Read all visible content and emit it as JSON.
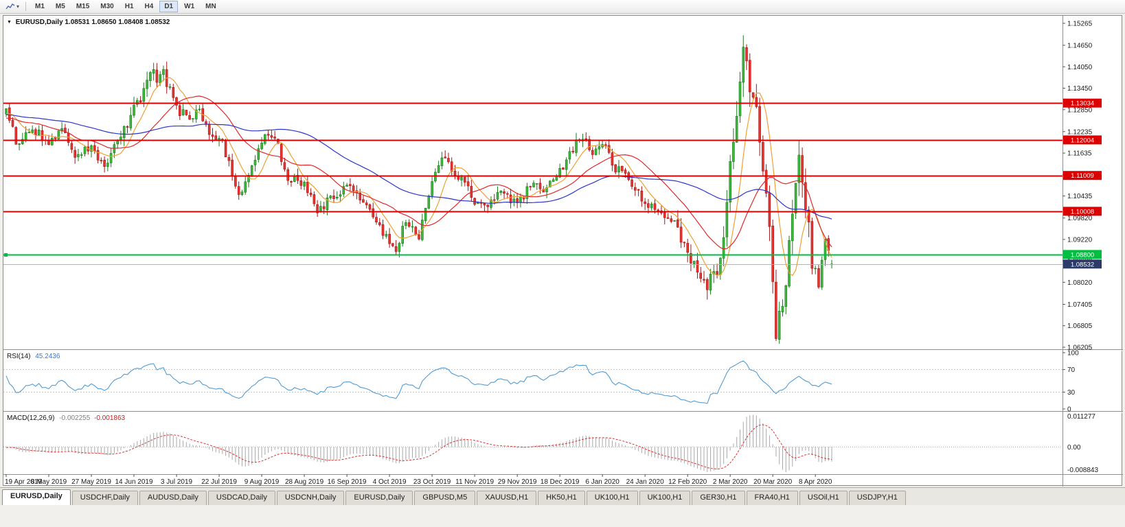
{
  "toolbar": {
    "chart_icon": "mini-line-chart",
    "dropdown_arrow": "▾",
    "timeframes": [
      {
        "label": "M1",
        "active": false
      },
      {
        "label": "M5",
        "active": false
      },
      {
        "label": "M15",
        "active": false
      },
      {
        "label": "M30",
        "active": false
      },
      {
        "label": "H1",
        "active": false
      },
      {
        "label": "H4",
        "active": false
      },
      {
        "label": "D1",
        "active": true
      },
      {
        "label": "W1",
        "active": false
      },
      {
        "label": "MN",
        "active": false
      }
    ]
  },
  "chart": {
    "collapse_arrow": "▼",
    "title_symbol": "EURUSD,Daily",
    "title_ohlc": "1.08531 1.08650 1.08408 1.08532",
    "price_axis_labels": [
      "1.15265",
      "1.14650",
      "1.14050",
      "1.13450",
      "1.12850",
      "1.12235",
      "1.11635",
      "1.11030",
      "1.10435",
      "1.09820",
      "1.09220",
      "1.08620",
      "1.08020",
      "1.07405",
      "1.06805",
      "1.06205"
    ]
  },
  "rsi_panel": {
    "name": "RSI(14)",
    "value": "45.2436",
    "axis_labels": [
      "100",
      "70",
      "30",
      "0"
    ],
    "levels": [
      70,
      30
    ],
    "line_color": "#4f9bd5"
  },
  "macd_panel": {
    "name": "MACD(12,26,9)",
    "value_main": "-0.002255",
    "value_signal": "-0.001863",
    "axis_top": "0.011277",
    "axis_zero": "0.00",
    "axis_bottom": "-0.008843"
  },
  "tabs": [
    {
      "label": "EURUSD,Daily",
      "active": true
    },
    {
      "label": "USDCHF,Daily",
      "active": false
    },
    {
      "label": "AUDUSD,Daily",
      "active": false
    },
    {
      "label": "USDCAD,Daily",
      "active": false
    },
    {
      "label": "USDCNH,Daily",
      "active": false
    },
    {
      "label": "EURUSD,Daily",
      "active": false
    },
    {
      "label": "GBPUSD,M5",
      "active": false
    },
    {
      "label": "XAUUSD,H1",
      "active": false
    },
    {
      "label": "HK50,H1",
      "active": false
    },
    {
      "label": "UK100,H1",
      "active": false
    },
    {
      "label": "UK100,H1",
      "active": false
    },
    {
      "label": "GER30,H1",
      "active": false
    },
    {
      "label": "FRA40,H1",
      "active": false
    },
    {
      "label": "USOil,H1",
      "active": false
    },
    {
      "label": "USDJPY,H1",
      "active": false
    }
  ],
  "chart_data": {
    "type": "candlestick",
    "symbol": "EURUSD",
    "timeframe": "Daily",
    "n_candles": 253,
    "warmup_bars": 60,
    "date_tick_interval": 13,
    "dates": [
      "19 Apr 2019",
      "8 May 2019",
      "27 May 2019",
      "14 Jun 2019",
      "3 Jul 2019",
      "22 Jul 2019",
      "9 Aug 2019",
      "28 Aug 2019",
      "16 Sep 2019",
      "4 Oct 2019",
      "23 Oct 2019",
      "11 Nov 2019",
      "29 Nov 2019",
      "18 Dec 2019",
      "6 Jan 2020",
      "24 Jan 2020",
      "12 Feb 2020",
      "2 Mar 2020",
      "20 Mar 2020",
      "8 Apr 2020"
    ],
    "price_range": [
      1.06147,
      1.15476
    ],
    "macd_range": [
      -0.008843,
      0.011277
    ],
    "last_ohlc": {
      "open": 1.08531,
      "high": 1.0865,
      "low": 1.08408,
      "close": 1.08532
    },
    "waypoints": [
      [
        -60,
        1.131
      ],
      [
        -45,
        1.126
      ],
      [
        -30,
        1.1295
      ],
      [
        -15,
        1.1245
      ],
      [
        -5,
        1.127
      ],
      [
        0,
        1.1285
      ],
      [
        3,
        1.1195
      ],
      [
        8,
        1.123
      ],
      [
        13,
        1.1195
      ],
      [
        17,
        1.123
      ],
      [
        21,
        1.1155
      ],
      [
        26,
        1.1185
      ],
      [
        30,
        1.1125
      ],
      [
        34,
        1.12
      ],
      [
        38,
        1.127
      ],
      [
        42,
        1.133
      ],
      [
        44,
        1.1405
      ],
      [
        46,
        1.136
      ],
      [
        48,
        1.139
      ],
      [
        52,
        1.1285
      ],
      [
        56,
        1.1265
      ],
      [
        59,
        1.1285
      ],
      [
        63,
        1.12
      ],
      [
        65,
        1.1215
      ],
      [
        68,
        1.114
      ],
      [
        71,
        1.104
      ],
      [
        74,
        1.1105
      ],
      [
        78,
        1.12
      ],
      [
        82,
        1.121
      ],
      [
        86,
        1.1095
      ],
      [
        91,
        1.108
      ],
      [
        95,
        1.099
      ],
      [
        99,
        1.104
      ],
      [
        104,
        1.107
      ],
      [
        108,
        1.104
      ],
      [
        112,
        1.099
      ],
      [
        116,
        1.093
      ],
      [
        119,
        1.0895
      ],
      [
        122,
        1.0975
      ],
      [
        126,
        1.0935
      ],
      [
        130,
        1.108
      ],
      [
        133,
        1.1155
      ],
      [
        137,
        1.111
      ],
      [
        140,
        1.1075
      ],
      [
        143,
        1.103
      ],
      [
        147,
        1.101
      ],
      [
        151,
        1.1065
      ],
      [
        156,
        1.1015
      ],
      [
        160,
        1.1075
      ],
      [
        164,
        1.1065
      ],
      [
        169,
        1.1115
      ],
      [
        173,
        1.1175
      ],
      [
        176,
        1.1215
      ],
      [
        179,
        1.1165
      ],
      [
        182,
        1.119
      ],
      [
        186,
        1.112
      ],
      [
        190,
        1.1095
      ],
      [
        195,
        1.1025
      ],
      [
        200,
        1.1
      ],
      [
        204,
        1.0975
      ],
      [
        208,
        1.087
      ],
      [
        211,
        1.084
      ],
      [
        214,
        1.079
      ],
      [
        218,
        1.0855
      ],
      [
        221,
        1.1135
      ],
      [
        223,
        1.128
      ],
      [
        225,
        1.1455
      ],
      [
        227,
        1.136
      ],
      [
        229,
        1.127
      ],
      [
        231,
        1.112
      ],
      [
        233,
        1.094
      ],
      [
        235,
        1.0655
      ],
      [
        238,
        1.0805
      ],
      [
        240,
        1.1005
      ],
      [
        242,
        1.114
      ],
      [
        244,
        1.103
      ],
      [
        246,
        1.0865
      ],
      [
        248,
        1.0795
      ],
      [
        250,
        1.0915
      ],
      [
        252,
        1.0853
      ]
    ],
    "volatility_zones": [
      [
        219,
        246,
        2.3
      ],
      [
        205,
        218,
        1.5
      ],
      [
        36,
        50,
        1.3
      ]
    ],
    "extremes": [
      {
        "i": 225,
        "high": 1.1493
      },
      {
        "i": 235,
        "low": 1.0638
      }
    ],
    "moving_averages": [
      {
        "period": 8,
        "color": "#f0a030"
      },
      {
        "period": 21,
        "color": "#e02828"
      },
      {
        "period": 55,
        "color": "#2b35c8"
      }
    ],
    "levels": [
      {
        "price": 1.13034,
        "label": "1.13034",
        "color": "#dd0000",
        "kind": "resistance"
      },
      {
        "price": 1.12004,
        "label": "1.12004",
        "color": "#dd0000",
        "kind": "resistance"
      },
      {
        "price": 1.11009,
        "label": "1.11009",
        "color": "#dd0000",
        "kind": "resistance"
      },
      {
        "price": 1.10008,
        "label": "1.10008",
        "color": "#dd0000",
        "kind": "support"
      },
      {
        "price": 1.088,
        "label": "1.08800",
        "color": "#00bf40",
        "kind": "support-active"
      }
    ],
    "current_price": {
      "price": 1.08532,
      "label": "1.08532",
      "color": "#2b3a67"
    },
    "colors": {
      "up_fill": "#3cb83c",
      "up_stroke": "#1d7a1d",
      "down_fill": "#e8352f",
      "down_stroke": "#a31515",
      "macd_hist": "#a8a8a8",
      "macd_signal": "#e03030"
    }
  }
}
